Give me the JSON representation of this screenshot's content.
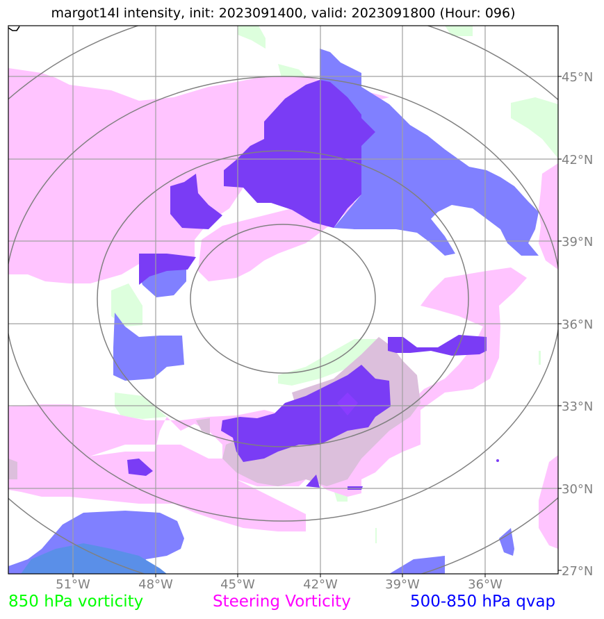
{
  "title": "margot14l intensity, init: 2023091400, valid: 2023091800 (Hour: 096)",
  "lat_labels": [
    "45°N",
    "42°N",
    "39°N",
    "36°N",
    "33°N",
    "30°N",
    "27°N"
  ],
  "lon_labels": [
    "51°W",
    "48°W",
    "45°W",
    "42°W",
    "39°W",
    "36°W"
  ],
  "legend": [
    {
      "label": "850 hPa vorticity",
      "color": "#00ff00"
    },
    {
      "label": "Steering Vorticity",
      "color": "#ff00ff"
    },
    {
      "label": "500-850 hPa qvap",
      "color": "#0000ff"
    }
  ],
  "colors": {
    "vorticity_850": "#ddffdd",
    "steering_vorticity": "#ffc4ff",
    "qvap_light": "#8080ff",
    "qvap_dark": "#7a3cf5",
    "overlap": "#dcbfdc",
    "grid": "#a0a0a0",
    "range_rings": "#808080"
  }
}
